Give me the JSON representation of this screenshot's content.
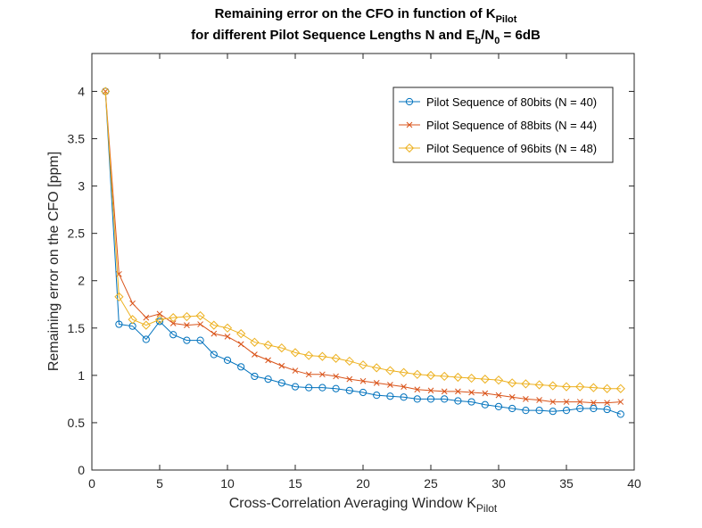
{
  "chart_data": {
    "type": "line",
    "title": {
      "line1_main": "Remaining error on the CFO in function of K",
      "line1_sub": "Pilot",
      "line2_a": "for different Pilot Sequence Lengths N and E",
      "line2_sub_b": "b",
      "line2_slash": "/N",
      "line2_sub_0": "0",
      "line2_end": " = 6dB"
    },
    "xlabel": {
      "main": "Cross-Correlation Averaging Window K",
      "sub": "Pilot"
    },
    "ylabel": "Remaining error on the CFO [ppm]",
    "xlim": [
      0,
      40
    ],
    "ylim": [
      0,
      4.4
    ],
    "xticks": [
      0,
      5,
      10,
      15,
      20,
      25,
      30,
      35,
      40
    ],
    "yticks": [
      0,
      0.5,
      1,
      1.5,
      2,
      2.5,
      3,
      3.5,
      4
    ],
    "grid": false,
    "legend_position": "top-right",
    "x": [
      1,
      2,
      3,
      4,
      5,
      6,
      7,
      8,
      9,
      10,
      11,
      12,
      13,
      14,
      15,
      16,
      17,
      18,
      19,
      20,
      21,
      22,
      23,
      24,
      25,
      26,
      27,
      28,
      29,
      30,
      31,
      32,
      33,
      34,
      35,
      36,
      37,
      38,
      39
    ],
    "series": [
      {
        "name": "Pilot Sequence of 80bits (N = 40)",
        "color": "#0072BD",
        "marker": "circle",
        "values": [
          4.0,
          1.54,
          1.52,
          1.38,
          1.57,
          1.43,
          1.37,
          1.37,
          1.22,
          1.16,
          1.09,
          0.99,
          0.96,
          0.92,
          0.88,
          0.87,
          0.87,
          0.86,
          0.84,
          0.82,
          0.79,
          0.78,
          0.77,
          0.75,
          0.75,
          0.75,
          0.73,
          0.72,
          0.69,
          0.67,
          0.65,
          0.63,
          0.63,
          0.62,
          0.63,
          0.65,
          0.65,
          0.64,
          0.59
        ]
      },
      {
        "name": "Pilot Sequence of 88bits (N = 44)",
        "color": "#D95319",
        "marker": "x",
        "values": [
          4.0,
          2.07,
          1.76,
          1.61,
          1.65,
          1.55,
          1.53,
          1.54,
          1.44,
          1.41,
          1.33,
          1.22,
          1.16,
          1.1,
          1.05,
          1.01,
          1.01,
          0.99,
          0.96,
          0.94,
          0.92,
          0.9,
          0.88,
          0.85,
          0.84,
          0.83,
          0.83,
          0.82,
          0.81,
          0.79,
          0.77,
          0.75,
          0.74,
          0.72,
          0.72,
          0.72,
          0.71,
          0.71,
          0.72
        ]
      },
      {
        "name": "Pilot Sequence of 96bits (N = 48)",
        "color": "#EDB120",
        "marker": "diamond",
        "values": [
          4.0,
          1.83,
          1.59,
          1.53,
          1.59,
          1.61,
          1.62,
          1.63,
          1.53,
          1.5,
          1.44,
          1.35,
          1.32,
          1.29,
          1.24,
          1.21,
          1.2,
          1.18,
          1.15,
          1.11,
          1.08,
          1.05,
          1.03,
          1.01,
          1.0,
          0.99,
          0.98,
          0.97,
          0.96,
          0.95,
          0.92,
          0.91,
          0.9,
          0.89,
          0.88,
          0.88,
          0.87,
          0.86,
          0.86
        ]
      }
    ]
  }
}
